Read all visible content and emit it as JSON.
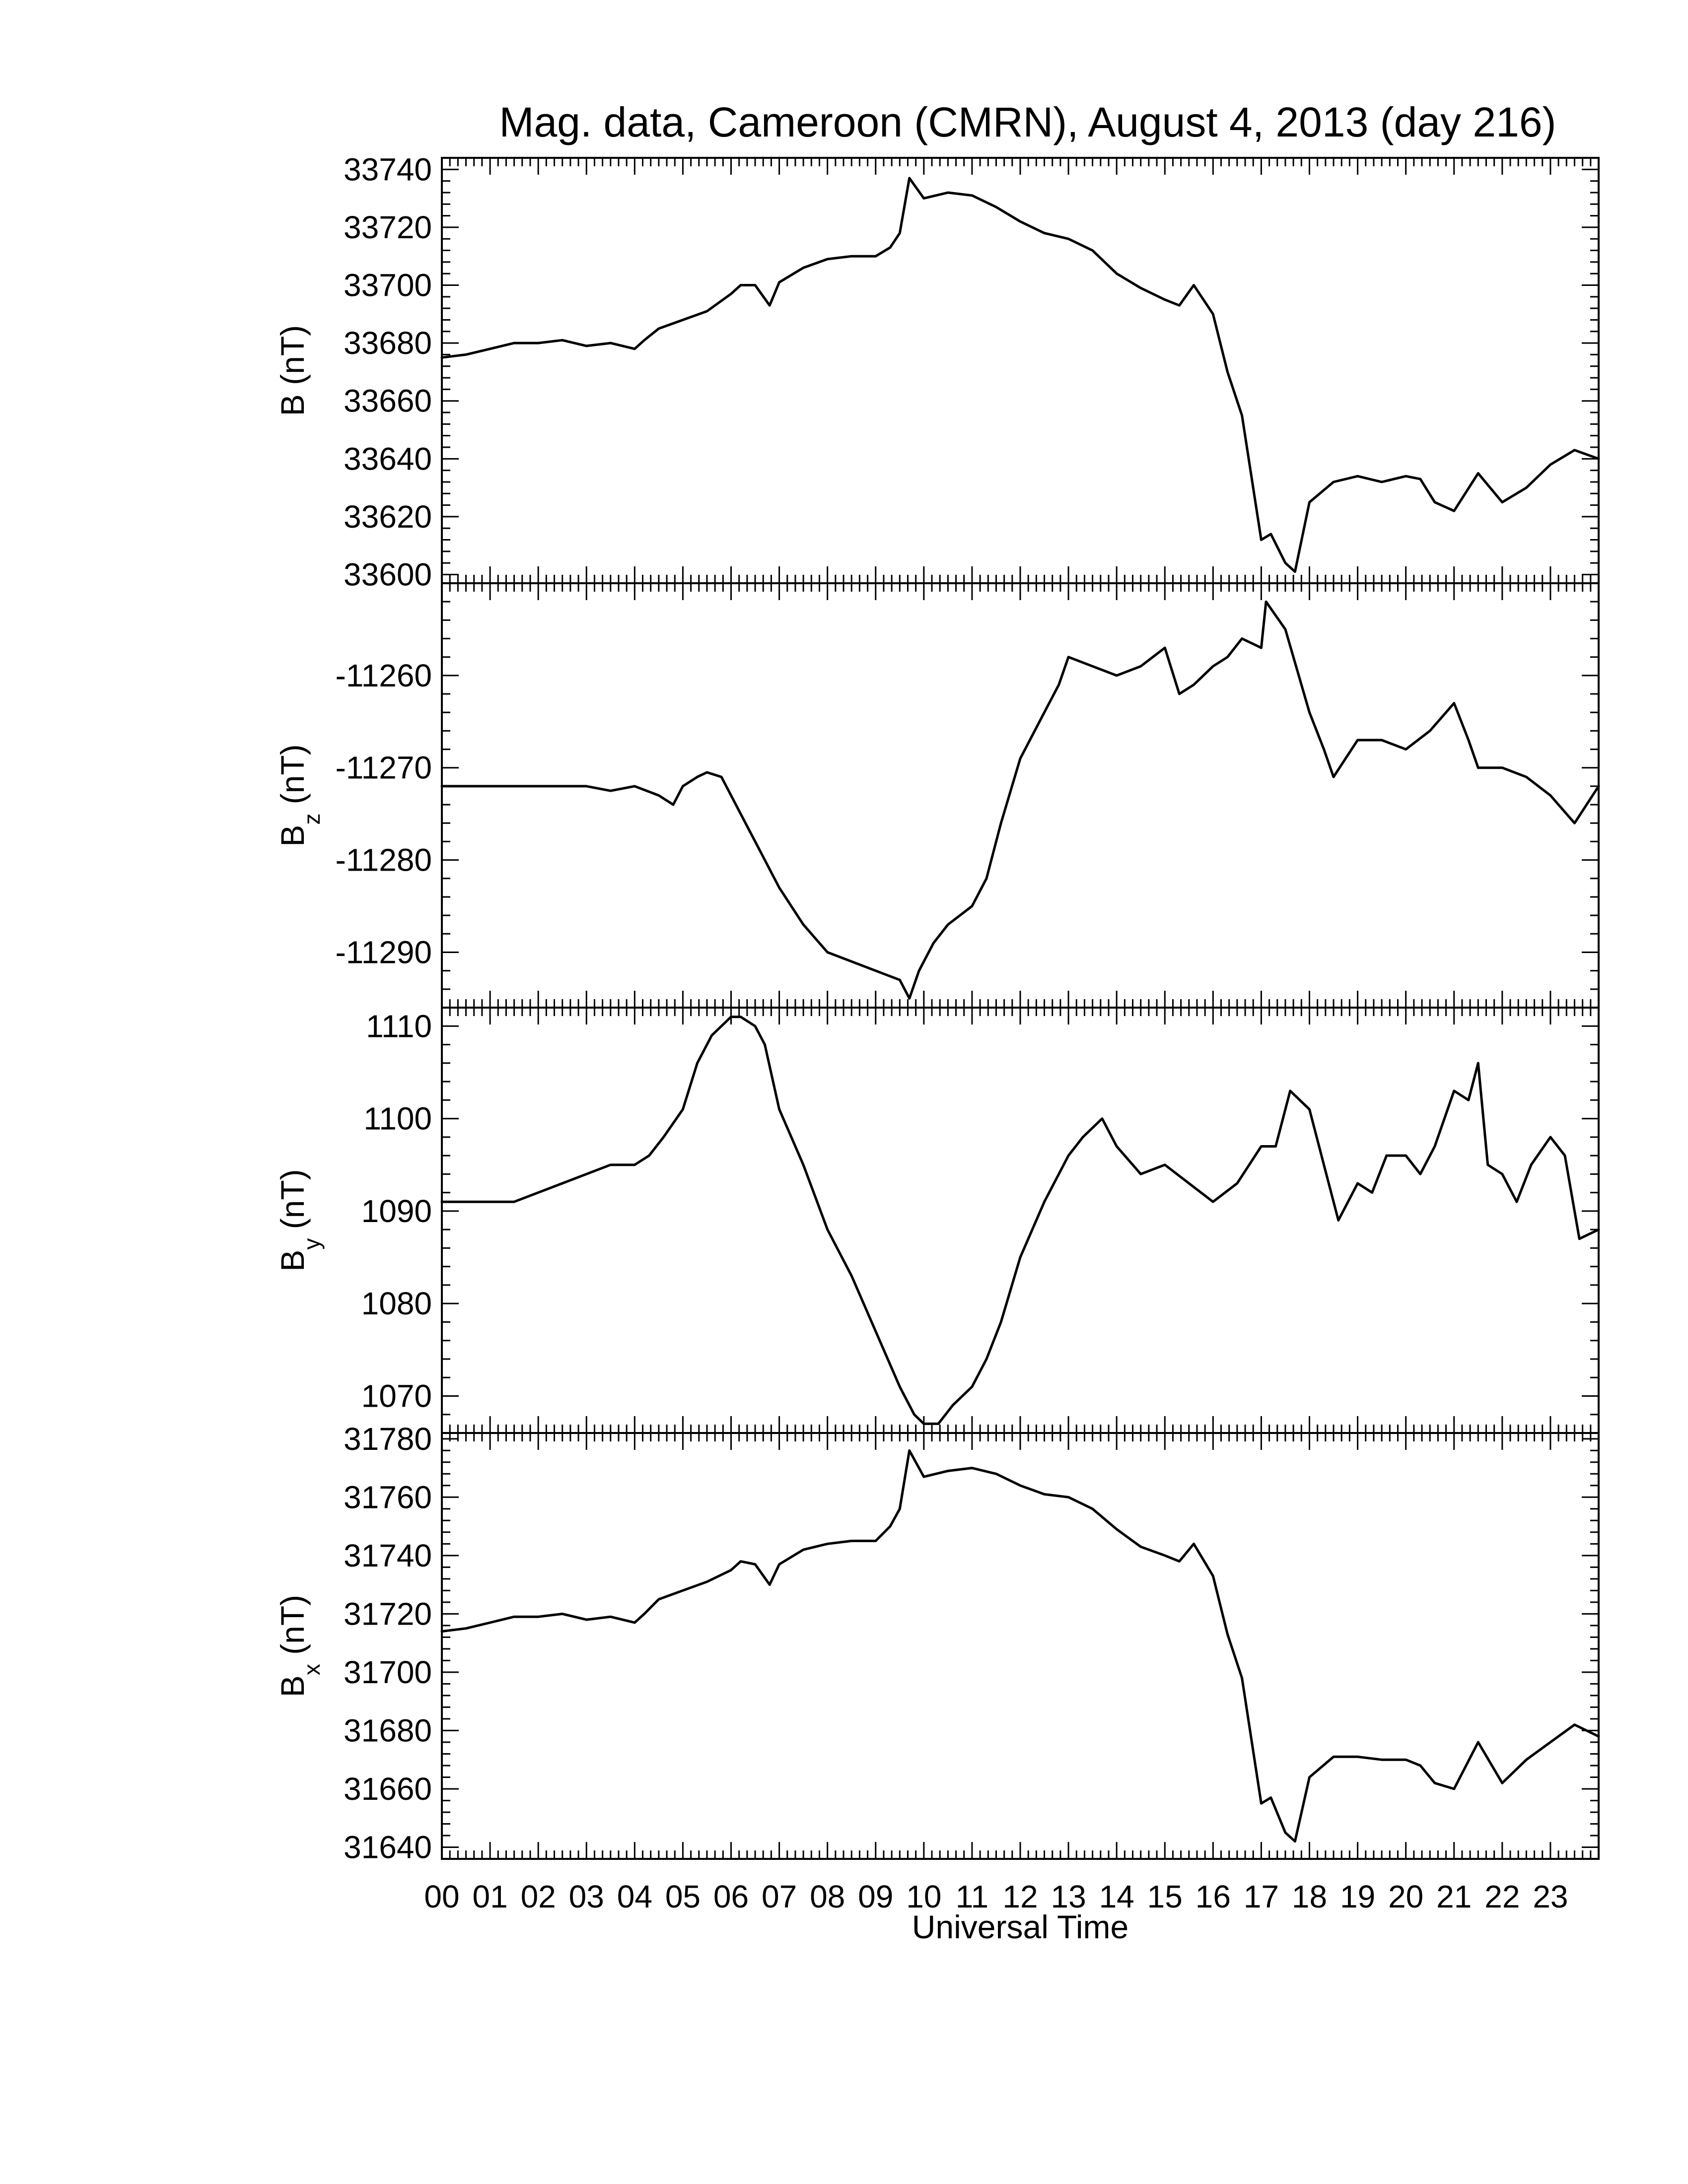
{
  "figure": {
    "title": "Mag. data, Cameroon (CMRN), August 4, 2013 (day 216)",
    "xlabel": "Universal Time",
    "xticks": [
      "00",
      "01",
      "02",
      "03",
      "04",
      "05",
      "06",
      "07",
      "08",
      "09",
      "10",
      "11",
      "12",
      "13",
      "14",
      "15",
      "16",
      "17",
      "18",
      "19",
      "20",
      "21",
      "22",
      "23"
    ]
  },
  "chart_data": [
    {
      "type": "line",
      "panel": "B",
      "ylabel": "B (nT)",
      "ylabel_main": "B",
      "ylabel_sub": "",
      "ylabel_unit": " (nT)",
      "ylim": [
        33597,
        33744
      ],
      "yticks": [
        33600,
        33620,
        33640,
        33660,
        33680,
        33700,
        33720,
        33740
      ],
      "xlim": [
        0,
        24
      ],
      "series": [
        {
          "x": [
            0,
            0.5,
            1,
            1.5,
            2,
            2.5,
            3,
            3.5,
            4,
            4.2,
            4.5,
            5,
            5.5,
            6,
            6.2,
            6.5,
            6.8,
            7,
            7.5,
            8,
            8.5,
            9,
            9.3,
            9.5,
            9.7,
            10,
            10.5,
            11,
            11.5,
            12,
            12.5,
            13,
            13.5,
            14,
            14.5,
            15,
            15.3,
            15.6,
            16,
            16.3,
            16.6,
            17,
            17.2,
            17.5,
            17.7,
            18,
            18.5,
            19,
            19.5,
            20,
            20.3,
            20.6,
            21,
            21.5,
            22,
            22.5,
            23,
            23.5,
            24
          ],
          "y": [
            33675,
            33676,
            33678,
            33680,
            33680,
            33681,
            33679,
            33680,
            33678,
            33681,
            33685,
            33688,
            33691,
            33697,
            33700,
            33700,
            33693,
            33701,
            33706,
            33709,
            33710,
            33710,
            33713,
            33718,
            33737,
            33730,
            33732,
            33731,
            33727,
            33722,
            33718,
            33716,
            33712,
            33704,
            33699,
            33695,
            33693,
            33700,
            33690,
            33670,
            33655,
            33612,
            33614,
            33604,
            33601,
            33625,
            33632,
            33634,
            33632,
            33634,
            33633,
            33625,
            33622,
            33635,
            33625,
            33630,
            33638,
            33643,
            33640
          ]
        }
      ]
    },
    {
      "type": "line",
      "panel": "Bz",
      "ylabel": "Bz (nT)",
      "ylabel_main": "B",
      "ylabel_sub": "z",
      "ylabel_unit": " (nT)",
      "ylim": [
        -11296,
        -11250
      ],
      "yticks": [
        -11260,
        -11270,
        -11280,
        -11290
      ],
      "xlim": [
        0,
        24
      ],
      "series": [
        {
          "x": [
            0,
            0.5,
            1,
            1.5,
            2,
            2.5,
            3,
            3.5,
            4,
            4.5,
            4.8,
            5,
            5.3,
            5.5,
            5.8,
            6,
            6.3,
            6.6,
            7,
            7.5,
            8,
            8.5,
            9,
            9.5,
            9.7,
            9.9,
            10.2,
            10.5,
            11,
            11.3,
            11.6,
            12,
            12.5,
            12.8,
            13,
            13.5,
            14,
            14.5,
            15,
            15.3,
            15.6,
            16,
            16.3,
            16.6,
            17,
            17.1,
            17.5,
            18,
            18.3,
            18.5,
            19,
            19.5,
            20,
            20.5,
            21,
            21.3,
            21.5,
            22,
            22.5,
            23,
            23.5,
            24
          ],
          "y": [
            -11272,
            -11272,
            -11272,
            -11272,
            -11272,
            -11272,
            -11272,
            -11272.5,
            -11272,
            -11273,
            -11274,
            -11272,
            -11271,
            -11270.5,
            -11271,
            -11273,
            -11276,
            -11279,
            -11283,
            -11287,
            -11290,
            -11291,
            -11292,
            -11293,
            -11295,
            -11292,
            -11289,
            -11287,
            -11285,
            -11282,
            -11276,
            -11269,
            -11264,
            -11261,
            -11258,
            -11259,
            -11260,
            -11259,
            -11257,
            -11262,
            -11261,
            -11259,
            -11258,
            -11256,
            -11257,
            -11252,
            -11255,
            -11264,
            -11268,
            -11271,
            -11267,
            -11267,
            -11268,
            -11266,
            -11263,
            -11267,
            -11270,
            -11270,
            -11271,
            -11273,
            -11276,
            -11272
          ]
        }
      ]
    },
    {
      "type": "line",
      "panel": "By",
      "ylabel": "By (nT)",
      "ylabel_main": "B",
      "ylabel_sub": "y",
      "ylabel_unit": " (nT)",
      "ylim": [
        1066,
        1112
      ],
      "yticks": [
        1070,
        1080,
        1090,
        1100,
        1110
      ],
      "xlim": [
        0,
        24
      ],
      "series": [
        {
          "x": [
            0,
            0.5,
            1,
            1.5,
            2,
            2.5,
            3,
            3.5,
            4,
            4.3,
            4.6,
            5,
            5.3,
            5.6,
            6,
            6.2,
            6.5,
            6.7,
            7,
            7.5,
            8,
            8.5,
            9,
            9.5,
            9.8,
            10,
            10.3,
            10.6,
            11,
            11.3,
            11.6,
            12,
            12.5,
            13,
            13.3,
            13.7,
            14,
            14.5,
            15,
            15.5,
            16,
            16.5,
            17,
            17.3,
            17.6,
            18,
            18.3,
            18.6,
            19,
            19.3,
            19.6,
            20,
            20.3,
            20.6,
            21,
            21.3,
            21.5,
            21.7,
            22,
            22.3,
            22.6,
            23,
            23.3,
            23.6,
            24
          ],
          "y": [
            1091,
            1091,
            1091,
            1091,
            1092,
            1093,
            1094,
            1095,
            1095,
            1096,
            1098,
            1101,
            1106,
            1109,
            1111,
            1111,
            1110,
            1108,
            1101,
            1095,
            1088,
            1083,
            1077,
            1071,
            1068,
            1067,
            1067,
            1069,
            1071,
            1074,
            1078,
            1085,
            1091,
            1096,
            1098,
            1100,
            1097,
            1094,
            1095,
            1093,
            1091,
            1093,
            1097,
            1097,
            1103,
            1101,
            1095,
            1089,
            1093,
            1092,
            1096,
            1096,
            1094,
            1097,
            1103,
            1102,
            1106,
            1095,
            1094,
            1091,
            1095,
            1098,
            1096,
            1087,
            1088
          ]
        }
      ]
    },
    {
      "type": "line",
      "panel": "Bx",
      "ylabel": "Bx (nT)",
      "ylabel_main": "B",
      "ylabel_sub": "x",
      "ylabel_unit": " (nT)",
      "ylim": [
        31636,
        31782
      ],
      "yticks": [
        31640,
        31660,
        31680,
        31700,
        31720,
        31740,
        31760,
        31780
      ],
      "xlim": [
        0,
        24
      ],
      "series": [
        {
          "x": [
            0,
            0.5,
            1,
            1.5,
            2,
            2.5,
            3,
            3.5,
            4,
            4.2,
            4.5,
            5,
            5.5,
            6,
            6.2,
            6.5,
            6.8,
            7,
            7.5,
            8,
            8.5,
            9,
            9.3,
            9.5,
            9.7,
            10,
            10.5,
            11,
            11.5,
            12,
            12.5,
            13,
            13.5,
            14,
            14.5,
            15,
            15.3,
            15.6,
            16,
            16.3,
            16.6,
            17,
            17.2,
            17.5,
            17.7,
            18,
            18.5,
            19,
            19.5,
            20,
            20.3,
            20.6,
            21,
            21.5,
            22,
            22.5,
            23,
            23.5,
            24
          ],
          "y": [
            31714,
            31715,
            31717,
            31719,
            31719,
            31720,
            31718,
            31719,
            31717,
            31720,
            31725,
            31728,
            31731,
            31735,
            31738,
            31737,
            31730,
            31737,
            31742,
            31744,
            31745,
            31745,
            31750,
            31756,
            31776,
            31767,
            31769,
            31770,
            31768,
            31764,
            31761,
            31760,
            31756,
            31749,
            31743,
            31740,
            31738,
            31744,
            31733,
            31713,
            31698,
            31655,
            31657,
            31645,
            31642,
            31664,
            31671,
            31671,
            31670,
            31670,
            31668,
            31662,
            31660,
            31676,
            31662,
            31670,
            31676,
            31682,
            31678
          ]
        }
      ]
    }
  ]
}
